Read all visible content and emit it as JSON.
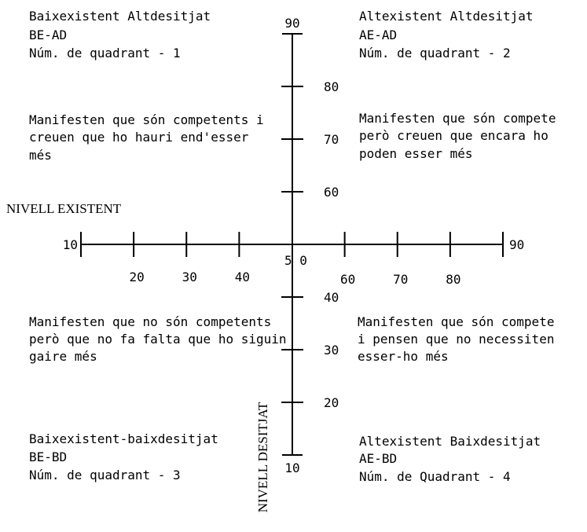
{
  "quadrants": {
    "q2": {
      "line1": "Baixexistent Altdesitjat",
      "line2": "BE-AD",
      "line3": "Núm. de quadrant - 1",
      "desc1": "Manifesten que són competents i",
      "desc2": "creuen que ho hauri end'esser",
      "desc3": "més"
    },
    "q1": {
      "line1": "Altexistent Altdesitjat",
      "line2": "AE-AD",
      "line3": "Núm. de quadrant - 2",
      "desc1": "Manifesten que són compete",
      "desc2": "però creuen que encara ho",
      "desc3": "poden esser més"
    },
    "q3": {
      "line1": "Baixexistent-baixdesitjat",
      "line2": "BE-BD",
      "line3": "Núm. de quadrant - 3",
      "desc1": "Manifesten que no són competents",
      "desc2": "però que no fa falta que ho siguin",
      "desc3": "gaire més"
    },
    "q4": {
      "line1": "Altexistent Baixdesitjat",
      "line2": "AE-BD",
      "line3": "Núm. de Quadrant - 4",
      "desc1": "Manifesten que són compete",
      "desc2": "i pensen que no necessiten",
      "desc3": "esser-ho més"
    }
  },
  "axes": {
    "x_title": "NIVELL EXISTENT",
    "y_title": "NIVELL DESITJAT",
    "x_ticks": [
      {
        "value": 10,
        "label": "10"
      },
      {
        "value": 20,
        "label": "20"
      },
      {
        "value": 30,
        "label": "30"
      },
      {
        "value": 40,
        "label": "40"
      },
      {
        "value": 50,
        "label": "5 0"
      },
      {
        "value": 60,
        "label": "60"
      },
      {
        "value": 70,
        "label": "70"
      },
      {
        "value": 80,
        "label": "80"
      },
      {
        "value": 90,
        "label": "90"
      }
    ],
    "y_ticks": [
      {
        "value": 10,
        "label": "10"
      },
      {
        "value": 20,
        "label": "20"
      },
      {
        "value": 30,
        "label": "30"
      },
      {
        "value": 40,
        "label": "40"
      },
      {
        "value": 60,
        "label": "60"
      },
      {
        "value": 70,
        "label": "70"
      },
      {
        "value": 80,
        "label": "80"
      },
      {
        "value": 90,
        "label": "90"
      }
    ]
  }
}
